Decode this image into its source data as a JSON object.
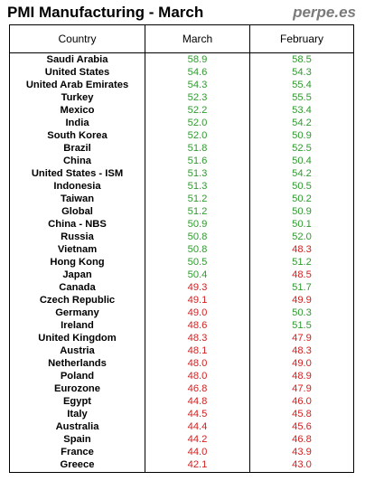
{
  "header": {
    "title": "PMI Manufacturing - March",
    "brand": "perpe.es"
  },
  "columns": {
    "country": "Country",
    "march": "March",
    "february": "February"
  },
  "colors": {
    "expansion": "#2f9a2f",
    "contraction": "#d42020",
    "threshold": 50
  },
  "chart_data": {
    "type": "table",
    "title": "PMI Manufacturing - March",
    "columns": [
      "Country",
      "March",
      "February"
    ],
    "rows": [
      {
        "country": "Saudi Arabia",
        "march": "58.9",
        "february": "58.5"
      },
      {
        "country": "United States",
        "march": "54.6",
        "february": "54.3"
      },
      {
        "country": "United Arab Emirates",
        "march": "54.3",
        "february": "55.4"
      },
      {
        "country": "Turkey",
        "march": "52.3",
        "february": "55.5"
      },
      {
        "country": "Mexico",
        "march": "52.2",
        "february": "53.4"
      },
      {
        "country": "India",
        "march": "52.0",
        "february": "54.2"
      },
      {
        "country": "South Korea",
        "march": "52.0",
        "february": "50.9"
      },
      {
        "country": "Brazil",
        "march": "51.8",
        "february": "52.5"
      },
      {
        "country": "China",
        "march": "51.6",
        "february": "50.4"
      },
      {
        "country": "United States - ISM",
        "march": "51.3",
        "february": "54.2"
      },
      {
        "country": "Indonesia",
        "march": "51.3",
        "february": "50.5"
      },
      {
        "country": "Taiwan",
        "march": "51.2",
        "february": "50.2"
      },
      {
        "country": "Global",
        "march": "51.2",
        "february": "50.9"
      },
      {
        "country": "China - NBS",
        "march": "50.9",
        "february": "50.1"
      },
      {
        "country": "Russia",
        "march": "50.8",
        "february": "52.0"
      },
      {
        "country": "Vietnam",
        "march": "50.8",
        "february": "48.3"
      },
      {
        "country": "Hong Kong",
        "march": "50.5",
        "february": "51.2"
      },
      {
        "country": "Japan",
        "march": "50.4",
        "february": "48.5"
      },
      {
        "country": "Canada",
        "march": "49.3",
        "february": "51.7"
      },
      {
        "country": "Czech Republic",
        "march": "49.1",
        "february": "49.9"
      },
      {
        "country": "Germany",
        "march": "49.0",
        "february": "50.3"
      },
      {
        "country": "Ireland",
        "march": "48.6",
        "february": "51.5"
      },
      {
        "country": "United Kingdom",
        "march": "48.3",
        "february": "47.9"
      },
      {
        "country": "Austria",
        "march": "48.1",
        "february": "48.3"
      },
      {
        "country": "Netherlands",
        "march": "48.0",
        "february": "49.0"
      },
      {
        "country": "Poland",
        "march": "48.0",
        "february": "48.9"
      },
      {
        "country": "Eurozone",
        "march": "46.8",
        "february": "47.9"
      },
      {
        "country": "Egypt",
        "march": "44.8",
        "february": "46.0"
      },
      {
        "country": "Italy",
        "march": "44.5",
        "february": "45.8"
      },
      {
        "country": "Australia",
        "march": "44.4",
        "february": "45.6"
      },
      {
        "country": "Spain",
        "march": "44.2",
        "february": "46.8"
      },
      {
        "country": "France",
        "march": "44.0",
        "february": "43.9"
      },
      {
        "country": "Greece",
        "march": "42.1",
        "february": "43.0"
      }
    ]
  }
}
